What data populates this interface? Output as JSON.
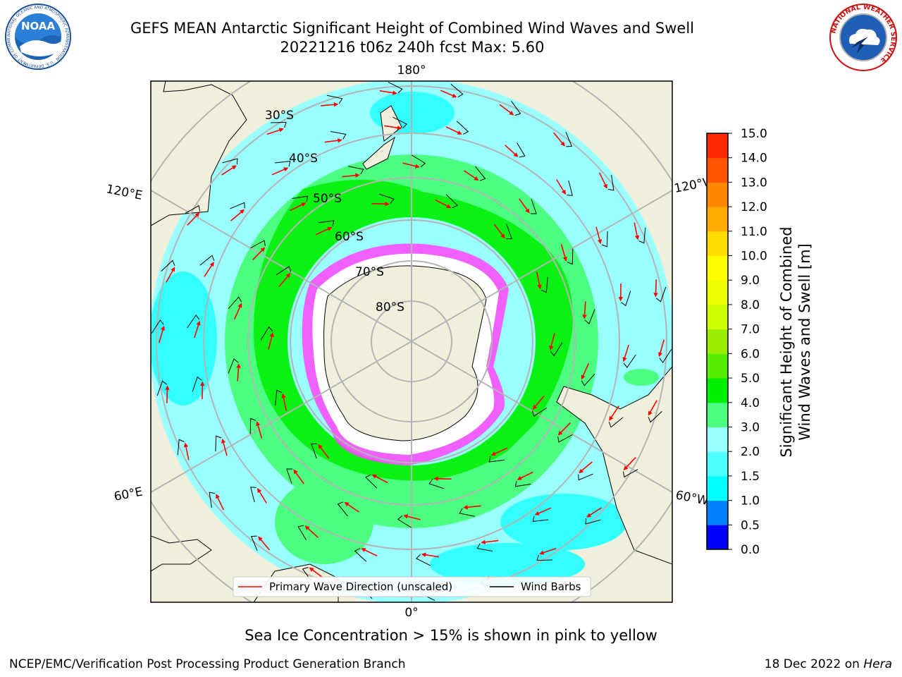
{
  "title": {
    "line1": "GEFS MEAN Antarctic Significant Height of Combined Wind Waves and Swell",
    "line2": "20221216 t06z 240h fcst   Max: 5.60"
  },
  "logos": {
    "left": {
      "name": "noaa-logo",
      "text": "NOAA",
      "ring_text": "NATIONAL OCEANIC AND ATMOSPHERIC ADMINISTRATION · U.S. DEPARTMENT OF COMMERCE"
    },
    "right": {
      "name": "nws-logo",
      "ring_text": "NATIONAL WEATHER SERVICE"
    }
  },
  "map": {
    "projection": "south-polar-stereographic",
    "longitude_labels": {
      "top": "180°",
      "bottom": "0°",
      "upper_left": "120°E",
      "lower_left": "60°E",
      "upper_right": "120°W",
      "lower_right": "60°W"
    },
    "latitude_labels": [
      "30°S",
      "40°S",
      "50°S",
      "60°S",
      "70°S",
      "80°S"
    ],
    "colors": {
      "land": "#efefdc",
      "ocean_1_5_2": "#33ffff",
      "ocean_2_3": "#99ffff",
      "ocean_3_4": "#4dff80",
      "ocean_4_5": "#00ee00",
      "ice_white": "#ffffff",
      "ice_pink": "#ff44ff",
      "ice_orange": "#ffaa44",
      "grid": "#b4b4b4"
    },
    "legend": {
      "wave_label": "Primary Wave Direction (unscaled)",
      "wind_label": "Wind Barbs",
      "wave_color": "#ff0000",
      "wind_color": "#000000"
    }
  },
  "colorbar": {
    "label_line1": "Significant Height of Combined",
    "label_line2": "Wind Waves and Swell [m]",
    "ticks": [
      "15.0",
      "14.0",
      "13.0",
      "12.0",
      "11.0",
      "10.0",
      "9.0",
      "8.0",
      "7.0",
      "6.0",
      "5.0",
      "4.0",
      "3.0",
      "2.0",
      "1.5",
      "1.0",
      "0.5",
      "0.0"
    ],
    "colors": [
      "#0000ff",
      "#0080ff",
      "#00ffff",
      "#4dffff",
      "#99ffff",
      "#4dff80",
      "#00ee00",
      "#55ee00",
      "#99ee00",
      "#ccff00",
      "#eeff00",
      "#ffff00",
      "#ffdd00",
      "#ffaa00",
      "#ff8800",
      "#ff5500",
      "#ff2a00",
      "#ff0000"
    ]
  },
  "caption": "Sea Ice Concentration > 15% is shown in pink to yellow",
  "footer": {
    "left": "NCEP/EMC/Verification Post Processing Product Generation Branch",
    "right_prefix": "18 Dec 2022 on ",
    "right_machine": "Hera"
  }
}
